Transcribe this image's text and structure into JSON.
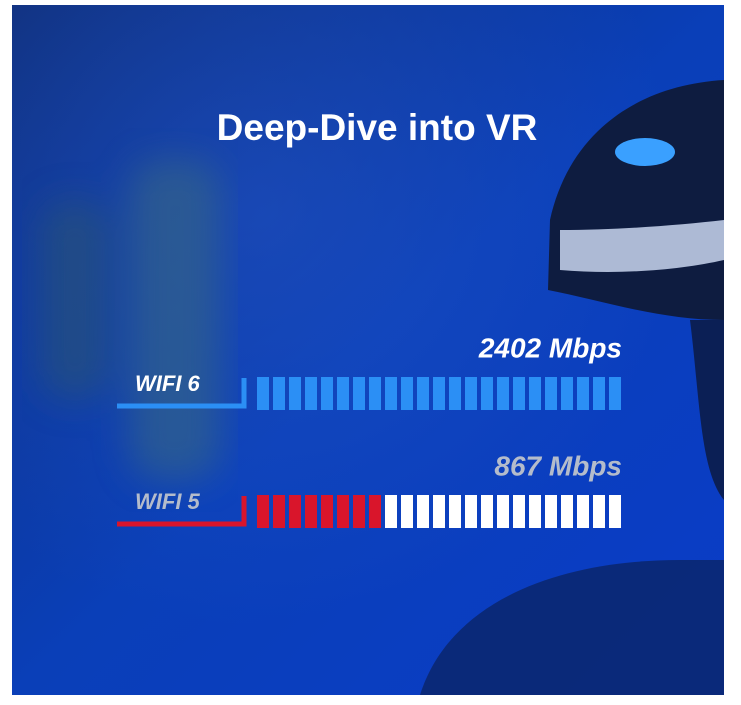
{
  "chart_data": {
    "type": "bar",
    "title": "Deep-Dive into VR",
    "categories": [
      "WIFI 6",
      "WIFI 5"
    ],
    "values": [
      2402,
      867
    ],
    "value_labels": [
      "2402 Mbps",
      "867 Mbps"
    ],
    "colors": [
      "#2b8ff5",
      "#d9152b"
    ],
    "xlim": [
      0,
      2402
    ]
  }
}
